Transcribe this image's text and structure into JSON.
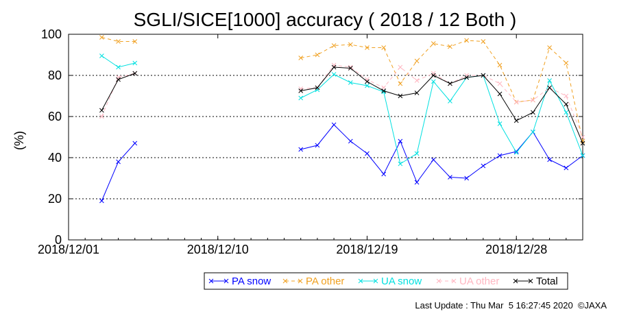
{
  "chart_data": {
    "type": "line",
    "title": "SGLI/SICE[1000] accuracy ( 2018 / 12 Both )",
    "ylabel": "(%)",
    "xlabel": "",
    "ylim": [
      0,
      100
    ],
    "yticks": [
      "0",
      "20",
      "40",
      "60",
      "80",
      "100"
    ],
    "xlim": [
      "2018/12/01",
      "2019/01/01"
    ],
    "xticks": [
      "2018/12/01",
      "2018/12/10",
      "2018/12/19",
      "2018/12/28"
    ],
    "grid": "horizontal dotted at 20, 40, 60, 80",
    "legend_position": "bottom-right",
    "x": [
      "2018/12/03",
      "2018/12/04",
      "2018/12/05",
      "2018/12/06",
      "2018/12/07",
      "2018/12/08",
      "2018/12/09",
      "2018/12/10",
      "2018/12/11",
      "2018/12/12",
      "2018/12/13",
      "2018/12/14",
      "2018/12/15",
      "2018/12/16",
      "2018/12/17",
      "2018/12/18",
      "2018/12/19",
      "2018/12/20",
      "2018/12/21",
      "2018/12/22",
      "2018/12/23",
      "2018/12/24",
      "2018/12/25",
      "2018/12/26",
      "2018/12/27",
      "2018/12/28",
      "2018/12/29",
      "2018/12/30",
      "2018/12/31",
      "2019/01/01"
    ],
    "series": [
      {
        "name": "PA snow",
        "color": "#0000ff",
        "dash": "solid",
        "values": [
          19,
          38,
          47,
          null,
          null,
          null,
          null,
          null,
          null,
          null,
          null,
          null,
          44,
          46,
          56,
          48,
          42,
          32,
          48,
          28,
          39,
          30.5,
          30,
          36,
          41,
          43,
          52.5,
          39,
          35,
          41
        ]
      },
      {
        "name": "PA other",
        "color": "#f0a020",
        "dash": "dashed",
        "values": [
          98.5,
          96.5,
          96.5,
          null,
          null,
          null,
          null,
          null,
          null,
          null,
          null,
          null,
          88.5,
          90,
          94.5,
          95,
          93.5,
          93.5,
          76,
          87,
          95.5,
          94,
          97,
          96.5,
          85,
          67,
          68,
          93.5,
          86,
          48
        ]
      },
      {
        "name": "UA snow",
        "color": "#00e0e0",
        "dash": "solid",
        "values": [
          89.5,
          84,
          86,
          null,
          null,
          null,
          null,
          null,
          null,
          null,
          null,
          null,
          69,
          73,
          80.5,
          76.5,
          75,
          72,
          37,
          42,
          77,
          67.5,
          79,
          80,
          56.5,
          42.5,
          52.5,
          77.5,
          62,
          41
        ]
      },
      {
        "name": "UA other",
        "color": "#ffb6c1",
        "dash": "dashed",
        "values": [
          60,
          79,
          81,
          null,
          null,
          null,
          null,
          null,
          null,
          null,
          null,
          null,
          73.5,
          74,
          85,
          84,
          78,
          74,
          84,
          77.5,
          81,
          76,
          80,
          80,
          76,
          67,
          68,
          74,
          70,
          50
        ]
      },
      {
        "name": "Total",
        "color": "#000000",
        "dash": "solid",
        "values": [
          63,
          78,
          81,
          null,
          null,
          null,
          null,
          null,
          null,
          null,
          null,
          null,
          72.5,
          74,
          84,
          83.5,
          77,
          72.5,
          70,
          71.5,
          80,
          76,
          79,
          80,
          71,
          58,
          62,
          74,
          66,
          47
        ]
      }
    ],
    "footer": "Last Update : Thu Mar  5 16:27:45 2020  ©JAXA"
  }
}
